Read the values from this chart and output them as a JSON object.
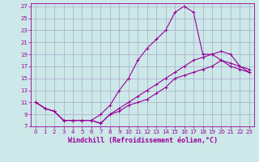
{
  "xlabel": "Windchill (Refroidissement éolien,°C)",
  "background_color": "#cce8e8",
  "grid_color": "#aaaacc",
  "line_color": "#990099",
  "xlim": [
    -0.5,
    23.5
  ],
  "ylim": [
    7,
    27.5
  ],
  "xticks": [
    0,
    1,
    2,
    3,
    4,
    5,
    6,
    7,
    8,
    9,
    10,
    11,
    12,
    13,
    14,
    15,
    16,
    17,
    18,
    19,
    20,
    21,
    22,
    23
  ],
  "yticks": [
    7,
    9,
    11,
    13,
    15,
    17,
    19,
    21,
    23,
    25,
    27
  ],
  "curve1_x": [
    0,
    1,
    2,
    3,
    4,
    5,
    6,
    7,
    8,
    9,
    10,
    11,
    12,
    13,
    14,
    15,
    16,
    17,
    18,
    19,
    20,
    21,
    22,
    23
  ],
  "curve1_y": [
    11,
    10,
    9.5,
    8,
    8,
    8,
    8,
    7.5,
    9,
    10,
    11,
    12,
    13,
    14,
    15,
    16,
    17,
    18,
    18.5,
    19,
    19.5,
    19,
    17,
    16
  ],
  "curve2_x": [
    0,
    1,
    2,
    3,
    4,
    5,
    6,
    7,
    8,
    9,
    10,
    11,
    12,
    13,
    14,
    15,
    16,
    17,
    18,
    19,
    20,
    21,
    22,
    23
  ],
  "curve2_y": [
    11,
    10,
    9.5,
    8,
    8,
    8,
    8,
    9,
    10.5,
    13,
    15,
    18,
    20,
    21.5,
    23,
    26,
    27,
    26,
    19,
    19,
    18,
    17.5,
    17,
    16.5
  ],
  "curve3_x": [
    0,
    1,
    2,
    3,
    4,
    5,
    6,
    7,
    8,
    9,
    10,
    11,
    12,
    13,
    14,
    15,
    16,
    17,
    18,
    19,
    20,
    21,
    22,
    23
  ],
  "curve3_y": [
    11,
    10,
    9.5,
    8,
    8,
    8,
    8,
    7.5,
    9,
    9.5,
    10.5,
    11,
    11.5,
    12.5,
    13.5,
    15,
    15.5,
    16,
    16.5,
    17,
    18,
    17,
    16.5,
    16
  ],
  "marker": "+",
  "marker_size": 3,
  "line_width": 0.8,
  "tick_fontsize": 5,
  "label_fontsize": 6,
  "tick_color": "#660066"
}
